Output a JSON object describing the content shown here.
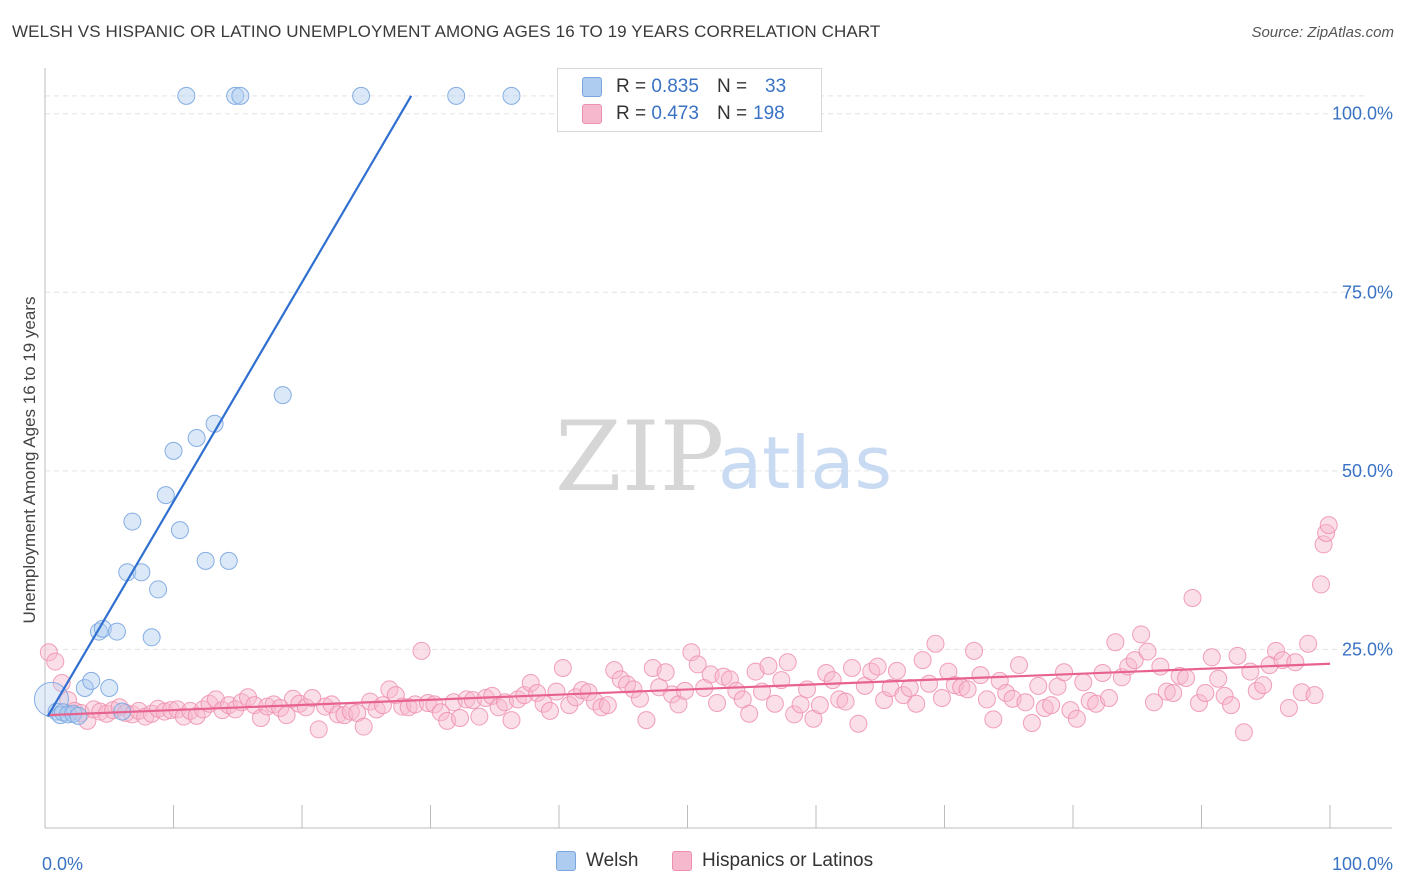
{
  "title": "WELSH VS HISPANIC OR LATINO UNEMPLOYMENT AMONG AGES 16 TO 19 YEARS CORRELATION CHART",
  "source": "Source: ZipAtlas.com",
  "watermark": {
    "zip": "ZIP",
    "atlas": "atlas"
  },
  "legend": {
    "rows": [
      {
        "r_label": "R =",
        "r_value": "0.835",
        "n_label": "N =",
        "n_value": "33"
      },
      {
        "r_label": "R =",
        "r_value": "0.473",
        "n_label": "N =",
        "n_value": "198"
      }
    ]
  },
  "bottom_legend": {
    "welsh": "Welsh",
    "hispanic": "Hispanics or Latinos"
  },
  "colors": {
    "welsh_fill": "#aecbf0",
    "welsh_stroke": "#7aa6e0",
    "welsh_line": "#2f6fcf",
    "hisp_fill": "#f6b8cc",
    "hisp_stroke": "#ee8fae",
    "hisp_line": "#e8628f",
    "axis_label": "#3a72c4",
    "grid": "#e3e3e3"
  },
  "chart_data": {
    "type": "scatter",
    "title": "WELSH VS HISPANIC OR LATINO UNEMPLOYMENT AMONG AGES 16 TO 19 YEARS CORRELATION CHART",
    "xlabel": "",
    "ylabel": "Unemployment Among Ages 16 to 19 years",
    "xlim": [
      0,
      100
    ],
    "ylim": [
      0,
      105
    ],
    "x_tick_labels": [
      "0.0%",
      "100.0%"
    ],
    "y_ticks": [
      25,
      50,
      75,
      100
    ],
    "y_tick_labels": [
      "25.0%",
      "50.0%",
      "75.0%",
      "100.0%"
    ],
    "grid": true,
    "series": [
      {
        "name": "Welsh",
        "R": 0.835,
        "N": 33,
        "trend": {
          "x0": 0.2,
          "y0": 15.6,
          "x1": 28.5,
          "y1": 102.5
        },
        "points": [
          [
            0.5,
            18
          ],
          [
            0.9,
            16.3
          ],
          [
            1.2,
            15.8
          ],
          [
            1.4,
            16.2
          ],
          [
            1.8,
            15.9
          ],
          [
            2.2,
            16.0
          ],
          [
            2.6,
            15.7
          ],
          [
            3.1,
            19.6
          ],
          [
            3.6,
            20.6
          ],
          [
            4.2,
            27.5
          ],
          [
            4.5,
            27.9
          ],
          [
            5.0,
            19.6
          ],
          [
            5.6,
            27.5
          ],
          [
            6.0,
            16.3
          ],
          [
            6.4,
            35.8
          ],
          [
            6.8,
            42.9
          ],
          [
            7.5,
            35.8
          ],
          [
            8.3,
            26.7
          ],
          [
            8.8,
            33.4
          ],
          [
            9.4,
            46.6
          ],
          [
            10.0,
            52.8
          ],
          [
            10.5,
            41.7
          ],
          [
            11.0,
            102.5
          ],
          [
            11.8,
            54.6
          ],
          [
            12.5,
            37.4
          ],
          [
            13.2,
            56.6
          ],
          [
            14.3,
            37.4
          ],
          [
            14.8,
            102.5
          ],
          [
            15.2,
            102.5
          ],
          [
            18.5,
            60.6
          ],
          [
            24.6,
            102.5
          ],
          [
            32.0,
            102.5
          ],
          [
            36.3,
            102.5
          ]
        ]
      },
      {
        "name": "Hispanics or Latinos",
        "R": 0.473,
        "N": 198,
        "trend": {
          "x0": 0.2,
          "y0": 15.8,
          "x1": 100,
          "y1": 23.0
        },
        "points": [
          [
            0.3,
            24.6
          ],
          [
            0.8,
            23.3
          ],
          [
            1.3,
            20.3
          ],
          [
            1.8,
            17.9
          ],
          [
            2.3,
            16.4
          ],
          [
            2.8,
            16.1
          ],
          [
            3.3,
            15.0
          ],
          [
            3.8,
            16.6
          ],
          [
            4.3,
            16.3
          ],
          [
            4.8,
            16.0
          ],
          [
            5.3,
            16.5
          ],
          [
            5.8,
            16.9
          ],
          [
            6.3,
            16.1
          ],
          [
            6.8,
            15.9
          ],
          [
            7.3,
            16.4
          ],
          [
            7.8,
            15.6
          ],
          [
            8.3,
            16.0
          ],
          [
            8.8,
            16.7
          ],
          [
            9.3,
            16.3
          ],
          [
            9.8,
            16.5
          ],
          [
            10.3,
            16.6
          ],
          [
            10.8,
            15.6
          ],
          [
            11.3,
            16.4
          ],
          [
            11.8,
            15.7
          ],
          [
            12.3,
            16.6
          ],
          [
            12.8,
            17.4
          ],
          [
            13.3,
            18.0
          ],
          [
            13.8,
            16.5
          ],
          [
            14.3,
            17.2
          ],
          [
            14.8,
            16.6
          ],
          [
            15.3,
            17.6
          ],
          [
            15.8,
            18.3
          ],
          [
            16.3,
            17.2
          ],
          [
            16.8,
            15.4
          ],
          [
            17.3,
            17.0
          ],
          [
            17.8,
            17.3
          ],
          [
            18.3,
            16.8
          ],
          [
            18.8,
            15.8
          ],
          [
            19.3,
            18.1
          ],
          [
            19.8,
            17.4
          ],
          [
            20.3,
            16.9
          ],
          [
            20.8,
            18.2
          ],
          [
            21.3,
            13.8
          ],
          [
            21.8,
            17.0
          ],
          [
            22.3,
            17.3
          ],
          [
            22.8,
            15.9
          ],
          [
            23.3,
            15.8
          ],
          [
            23.8,
            16.3
          ],
          [
            24.3,
            16.1
          ],
          [
            24.8,
            14.2
          ],
          [
            25.3,
            17.7
          ],
          [
            25.8,
            16.6
          ],
          [
            26.3,
            17.2
          ],
          [
            26.8,
            19.4
          ],
          [
            27.3,
            18.6
          ],
          [
            27.8,
            17.0
          ],
          [
            28.3,
            16.9
          ],
          [
            28.8,
            17.3
          ],
          [
            29.3,
            24.8
          ],
          [
            29.8,
            17.5
          ],
          [
            30.3,
            17.3
          ],
          [
            30.8,
            16.2
          ],
          [
            31.3,
            15.0
          ],
          [
            31.8,
            17.6
          ],
          [
            32.3,
            15.4
          ],
          [
            32.8,
            18.0
          ],
          [
            33.3,
            17.9
          ],
          [
            33.8,
            15.6
          ],
          [
            34.3,
            18.2
          ],
          [
            34.8,
            18.5
          ],
          [
            35.3,
            16.9
          ],
          [
            35.8,
            17.6
          ],
          [
            36.3,
            15.1
          ],
          [
            36.8,
            18.0
          ],
          [
            37.3,
            18.6
          ],
          [
            37.8,
            20.3
          ],
          [
            38.3,
            18.9
          ],
          [
            38.8,
            17.4
          ],
          [
            39.3,
            16.4
          ],
          [
            39.8,
            19.1
          ],
          [
            40.3,
            22.4
          ],
          [
            40.8,
            17.2
          ],
          [
            41.3,
            18.3
          ],
          [
            41.8,
            19.3
          ],
          [
            42.3,
            19.0
          ],
          [
            42.8,
            17.7
          ],
          [
            43.3,
            16.9
          ],
          [
            43.8,
            17.2
          ],
          [
            44.3,
            22.1
          ],
          [
            44.8,
            20.8
          ],
          [
            45.3,
            20.1
          ],
          [
            45.8,
            19.4
          ],
          [
            46.3,
            18.1
          ],
          [
            46.8,
            15.1
          ],
          [
            47.3,
            22.4
          ],
          [
            47.8,
            19.7
          ],
          [
            48.3,
            21.8
          ],
          [
            48.8,
            18.7
          ],
          [
            49.3,
            17.3
          ],
          [
            49.8,
            19.2
          ],
          [
            50.3,
            24.6
          ],
          [
            50.8,
            22.9
          ],
          [
            51.3,
            19.6
          ],
          [
            51.8,
            21.5
          ],
          [
            52.3,
            17.5
          ],
          [
            52.8,
            21.2
          ],
          [
            53.3,
            20.8
          ],
          [
            53.8,
            19.2
          ],
          [
            54.3,
            18.0
          ],
          [
            54.8,
            16.0
          ],
          [
            55.3,
            21.9
          ],
          [
            55.8,
            19.1
          ],
          [
            56.3,
            22.7
          ],
          [
            56.8,
            17.4
          ],
          [
            57.3,
            20.7
          ],
          [
            57.8,
            23.2
          ],
          [
            58.3,
            15.9
          ],
          [
            58.8,
            17.3
          ],
          [
            59.3,
            19.4
          ],
          [
            59.8,
            15.3
          ],
          [
            60.3,
            17.2
          ],
          [
            60.8,
            21.7
          ],
          [
            61.3,
            20.7
          ],
          [
            61.8,
            18.0
          ],
          [
            62.3,
            17.7
          ],
          [
            62.8,
            22.4
          ],
          [
            63.3,
            14.6
          ],
          [
            63.8,
            19.9
          ],
          [
            64.3,
            21.9
          ],
          [
            64.8,
            22.6
          ],
          [
            65.3,
            17.9
          ],
          [
            65.8,
            19.6
          ],
          [
            66.3,
            22.0
          ],
          [
            66.8,
            18.6
          ],
          [
            67.3,
            19.6
          ],
          [
            67.8,
            17.4
          ],
          [
            68.3,
            23.5
          ],
          [
            68.8,
            20.2
          ],
          [
            69.3,
            25.8
          ],
          [
            69.8,
            18.2
          ],
          [
            70.3,
            21.9
          ],
          [
            70.8,
            20.0
          ],
          [
            71.3,
            19.7
          ],
          [
            71.8,
            19.4
          ],
          [
            72.3,
            24.8
          ],
          [
            72.8,
            21.4
          ],
          [
            73.3,
            18.0
          ],
          [
            73.8,
            15.2
          ],
          [
            74.3,
            20.6
          ],
          [
            74.8,
            18.9
          ],
          [
            75.3,
            18.1
          ],
          [
            75.8,
            22.8
          ],
          [
            76.3,
            17.6
          ],
          [
            76.8,
            14.7
          ],
          [
            77.3,
            19.9
          ],
          [
            77.8,
            16.8
          ],
          [
            78.3,
            17.2
          ],
          [
            78.8,
            19.8
          ],
          [
            79.3,
            21.8
          ],
          [
            79.8,
            16.5
          ],
          [
            80.3,
            15.3
          ],
          [
            80.8,
            20.4
          ],
          [
            81.3,
            17.8
          ],
          [
            81.8,
            17.4
          ],
          [
            82.3,
            21.7
          ],
          [
            82.8,
            18.2
          ],
          [
            83.3,
            26.0
          ],
          [
            83.8,
            21.1
          ],
          [
            84.3,
            22.6
          ],
          [
            84.8,
            23.5
          ],
          [
            85.3,
            27.1
          ],
          [
            85.8,
            24.7
          ],
          [
            86.3,
            17.6
          ],
          [
            86.8,
            22.6
          ],
          [
            87.3,
            19.1
          ],
          [
            87.8,
            18.9
          ],
          [
            88.3,
            21.3
          ],
          [
            88.8,
            21.0
          ],
          [
            89.3,
            32.2
          ],
          [
            89.8,
            17.5
          ],
          [
            90.3,
            18.9
          ],
          [
            90.8,
            23.9
          ],
          [
            91.3,
            20.9
          ],
          [
            91.8,
            18.5
          ],
          [
            92.3,
            17.2
          ],
          [
            92.8,
            24.1
          ],
          [
            93.3,
            13.4
          ],
          [
            93.8,
            21.9
          ],
          [
            94.3,
            19.2
          ],
          [
            94.8,
            20.0
          ],
          [
            95.3,
            22.8
          ],
          [
            95.8,
            24.8
          ],
          [
            96.3,
            23.5
          ],
          [
            96.8,
            16.8
          ],
          [
            97.3,
            23.2
          ],
          [
            97.8,
            19.0
          ],
          [
            98.3,
            25.8
          ],
          [
            98.8,
            18.6
          ],
          [
            99.3,
            34.1
          ],
          [
            99.5,
            39.7
          ],
          [
            99.7,
            41.3
          ],
          [
            99.9,
            42.4
          ]
        ]
      }
    ]
  }
}
